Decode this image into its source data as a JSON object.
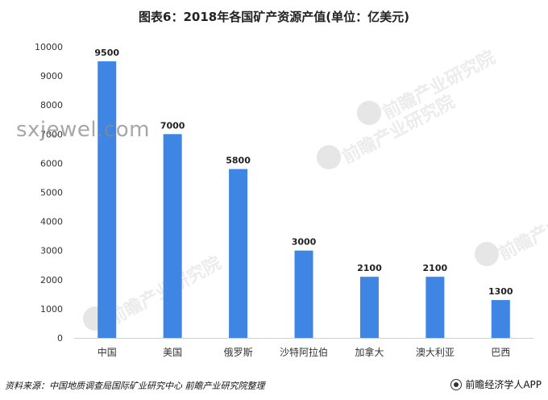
{
  "chart_data": {
    "type": "bar",
    "title": "图表6：2018年各国矿产资源产值(单位：亿美元)",
    "categories": [
      "中国",
      "美国",
      "俄罗斯",
      "沙特阿拉伯",
      "加拿大",
      "澳大利亚",
      "巴西"
    ],
    "values": [
      9500,
      7000,
      5800,
      3000,
      2100,
      2100,
      1300
    ],
    "data_labels": [
      "9500",
      "7000",
      "5800",
      "3000",
      "2100",
      "2100",
      "1300"
    ],
    "yticks": [
      "0",
      "1000",
      "2000",
      "3000",
      "4000",
      "5000",
      "6000",
      "7000",
      "8000",
      "9000",
      "10000"
    ],
    "ylim": [
      0,
      10000
    ],
    "grid": false,
    "bar_color": "#3f85e3"
  },
  "watermark": {
    "text": "sxjewel.com",
    "brand_mark": "前瞻产业研究院"
  },
  "footer": {
    "source": "资料来源：中国地质调查局国际矿业研究中心 前瞻产业研究院整理",
    "brand": "前瞻经济学人APP",
    "brand_icon": "brand-logo-icon"
  }
}
